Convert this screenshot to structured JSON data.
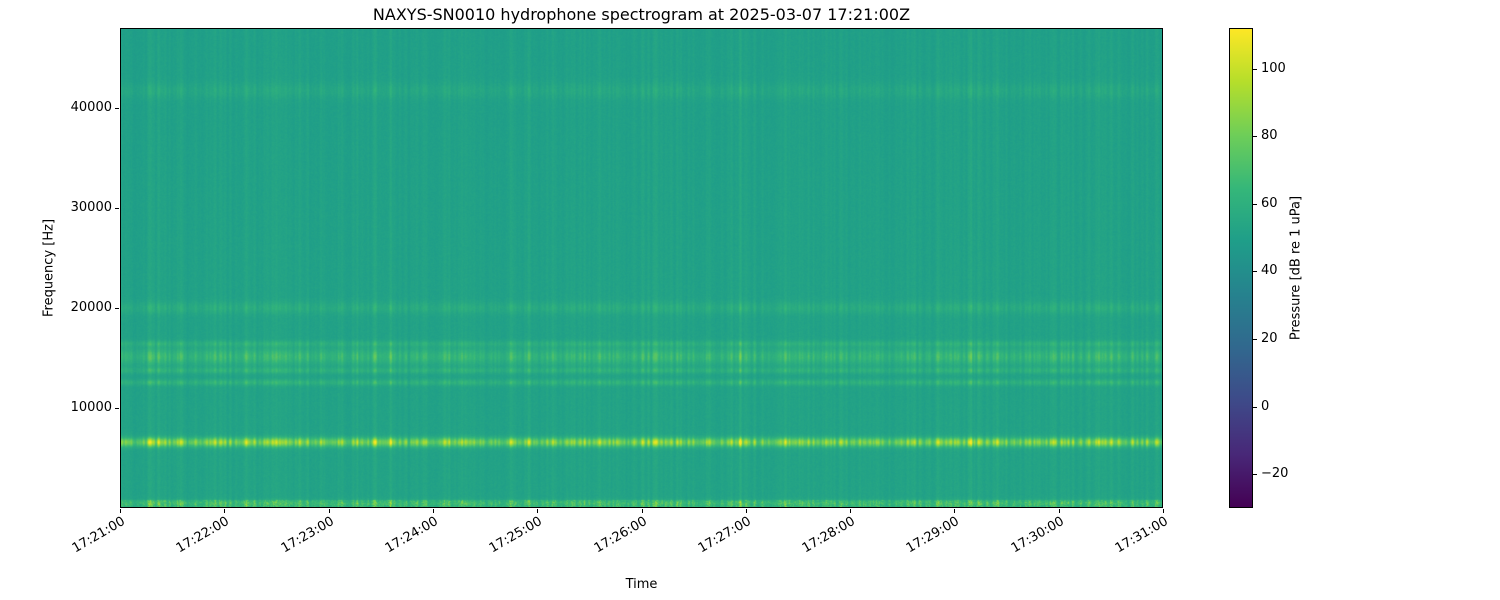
{
  "chart_data": {
    "type": "heatmap",
    "subtype": "spectrogram",
    "title": "NAXYS-SN0010 hydrophone spectrogram at 2025-03-07 17:21:00Z",
    "xlabel": "Time",
    "ylabel": "Frequency [Hz]",
    "x_ticks": [
      "17:21:00",
      "17:22:00",
      "17:23:00",
      "17:24:00",
      "17:25:00",
      "17:26:00",
      "17:27:00",
      "17:28:00",
      "17:29:00",
      "17:30:00",
      "17:31:00"
    ],
    "x_span_seconds": 600,
    "y_ticks": [
      10000,
      20000,
      30000,
      40000
    ],
    "freq_range_hz": [
      0,
      48000
    ],
    "colorbar": {
      "label": "Pressure [dB re 1 uPa]",
      "ticks": [
        100,
        80,
        60,
        40,
        20,
        0,
        -20
      ],
      "vmin": -30,
      "vmax": 112,
      "colormap": "viridis"
    },
    "background_level_db": 52.5,
    "bands": [
      {
        "center_hz": 6500,
        "half_width_hz": 450,
        "peak_db": 38,
        "note": "strong bright tonal band"
      },
      {
        "center_hz": 12500,
        "half_width_hz": 300,
        "peak_db": 11
      },
      {
        "center_hz": 13700,
        "half_width_hz": 300,
        "peak_db": 10
      },
      {
        "center_hz": 15100,
        "half_width_hz": 800,
        "peak_db": 15
      },
      {
        "center_hz": 16400,
        "half_width_hz": 300,
        "peak_db": 9
      },
      {
        "center_hz": 20000,
        "half_width_hz": 600,
        "peak_db": 7
      },
      {
        "center_hz": 41800,
        "half_width_hz": 800,
        "peak_db": 5,
        "note": "faint high-frequency band"
      },
      {
        "center_hz": 350,
        "half_width_hz": 350,
        "peak_db": 12,
        "note": "speckled band along bottom edge"
      }
    ],
    "texture_note": "broadband vertical striations (impulsive events) across entire record"
  },
  "colors": {
    "viridis_stops": [
      "#440154",
      "#482878",
      "#3e4a89",
      "#31688e",
      "#26828e",
      "#1f9e89",
      "#35b779",
      "#6ece58",
      "#b5de2b",
      "#fde725"
    ],
    "text": "#000000",
    "background": "#ffffff"
  }
}
